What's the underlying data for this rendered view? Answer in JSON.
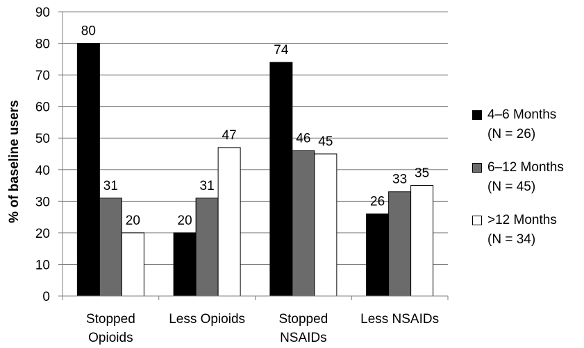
{
  "chart_data": {
    "type": "bar",
    "ylabel": "% of baseline users",
    "ylim": [
      0,
      90
    ],
    "yticks": [
      "0",
      "10",
      "20",
      "30",
      "40",
      "50",
      "60",
      "70",
      "80",
      "90"
    ],
    "categories": [
      [
        "Stopped",
        "Opioids"
      ],
      [
        "Less Opioids"
      ],
      [
        "Stopped",
        "NSAIDs"
      ],
      [
        "Less NSAIDs"
      ]
    ],
    "grid": true,
    "legend_position": "right",
    "series": [
      {
        "name": "4–6 Months",
        "n_label": "(N = 26)",
        "color": "#000000",
        "values": [
          80,
          20,
          74,
          26
        ]
      },
      {
        "name": "6–12 Months",
        "n_label": "(N = 45)",
        "color": "#6b6b6b",
        "values": [
          31,
          31,
          46,
          33
        ]
      },
      {
        "name": ">12 Months",
        "n_label": "(N = 34)",
        "color": "#ffffff",
        "values": [
          20,
          47,
          45,
          35
        ]
      }
    ]
  }
}
